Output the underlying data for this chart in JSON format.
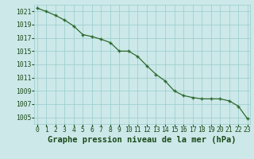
{
  "x": [
    0,
    1,
    2,
    3,
    4,
    5,
    6,
    7,
    8,
    9,
    10,
    11,
    12,
    13,
    14,
    15,
    16,
    17,
    18,
    19,
    20,
    21,
    22,
    23
  ],
  "y": [
    1021.5,
    1021.0,
    1020.4,
    1019.7,
    1018.8,
    1017.5,
    1017.2,
    1016.8,
    1016.3,
    1015.0,
    1015.0,
    1014.2,
    1012.8,
    1011.5,
    1010.5,
    1009.0,
    1008.3,
    1008.0,
    1007.8,
    1007.8,
    1007.8,
    1007.5,
    1006.7,
    1004.8
  ],
  "ylim": [
    1004,
    1022
  ],
  "xlim": [
    -0.3,
    23.3
  ],
  "yticks": [
    1005,
    1007,
    1009,
    1011,
    1013,
    1015,
    1017,
    1019,
    1021
  ],
  "xticks": [
    0,
    1,
    2,
    3,
    4,
    5,
    6,
    7,
    8,
    9,
    10,
    11,
    12,
    13,
    14,
    15,
    16,
    17,
    18,
    19,
    20,
    21,
    22,
    23
  ],
  "line_color": "#2d6a2d",
  "marker_color": "#2d6a2d",
  "bg_color": "#cce8e8",
  "grid_color": "#99cccc",
  "xlabel": "Graphe pression niveau de la mer (hPa)",
  "xlabel_color": "#1a4a1a",
  "tick_color": "#1a4a1a",
  "xlabel_fontsize": 7.5,
  "tick_fontsize": 5.8
}
